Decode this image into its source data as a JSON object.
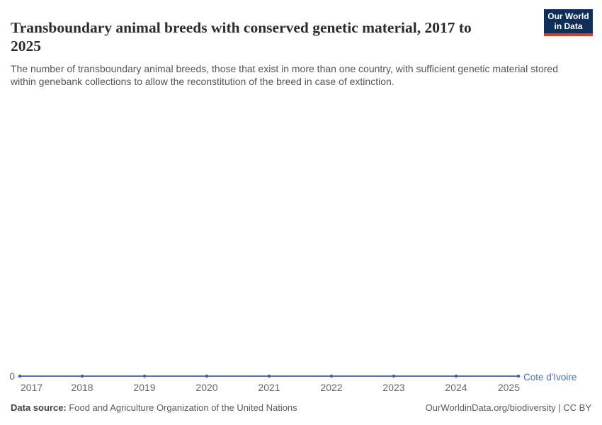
{
  "header": {
    "title": "Transboundary animal breeds with conserved genetic material, 2017 to 2025",
    "subtitle": "The number of transboundary animal breeds, those that exist in more than one country, with sufficient genetic material stored within genebank collections to allow the reconstitution of the breed in case of extinction.",
    "logo": {
      "line1": "Our World",
      "line2": "in Data",
      "bg_color": "#0f2e5a",
      "accent_color": "#e0392e"
    }
  },
  "chart_data": {
    "type": "line",
    "title": "Transboundary animal breeds with conserved genetic material, 2017 to 2025",
    "x": [
      2017,
      2018,
      2019,
      2020,
      2021,
      2022,
      2023,
      2024,
      2025
    ],
    "series": [
      {
        "name": "Cote d'Ivoire",
        "values": [
          0,
          0,
          0,
          0,
          0,
          0,
          0,
          0,
          0
        ],
        "color": "#3a5fa5",
        "label_color": "#4c70b2"
      }
    ],
    "xlabel": "",
    "ylabel": "",
    "y_axis": {
      "min": 0,
      "max": 0,
      "tick_labels": [
        "0"
      ]
    },
    "x_tick_labels": [
      "2017",
      "2018",
      "2019",
      "2020",
      "2021",
      "2022",
      "2023",
      "2024",
      "2025"
    ],
    "grid": false,
    "axis_text_color": "#666666",
    "legend_position": "end-of-line"
  },
  "footer": {
    "source_label": "Data source:",
    "source_text": " Food and Agriculture Organization of the United Nations",
    "credit": "OurWorldinData.org/biodiversity | CC BY"
  }
}
